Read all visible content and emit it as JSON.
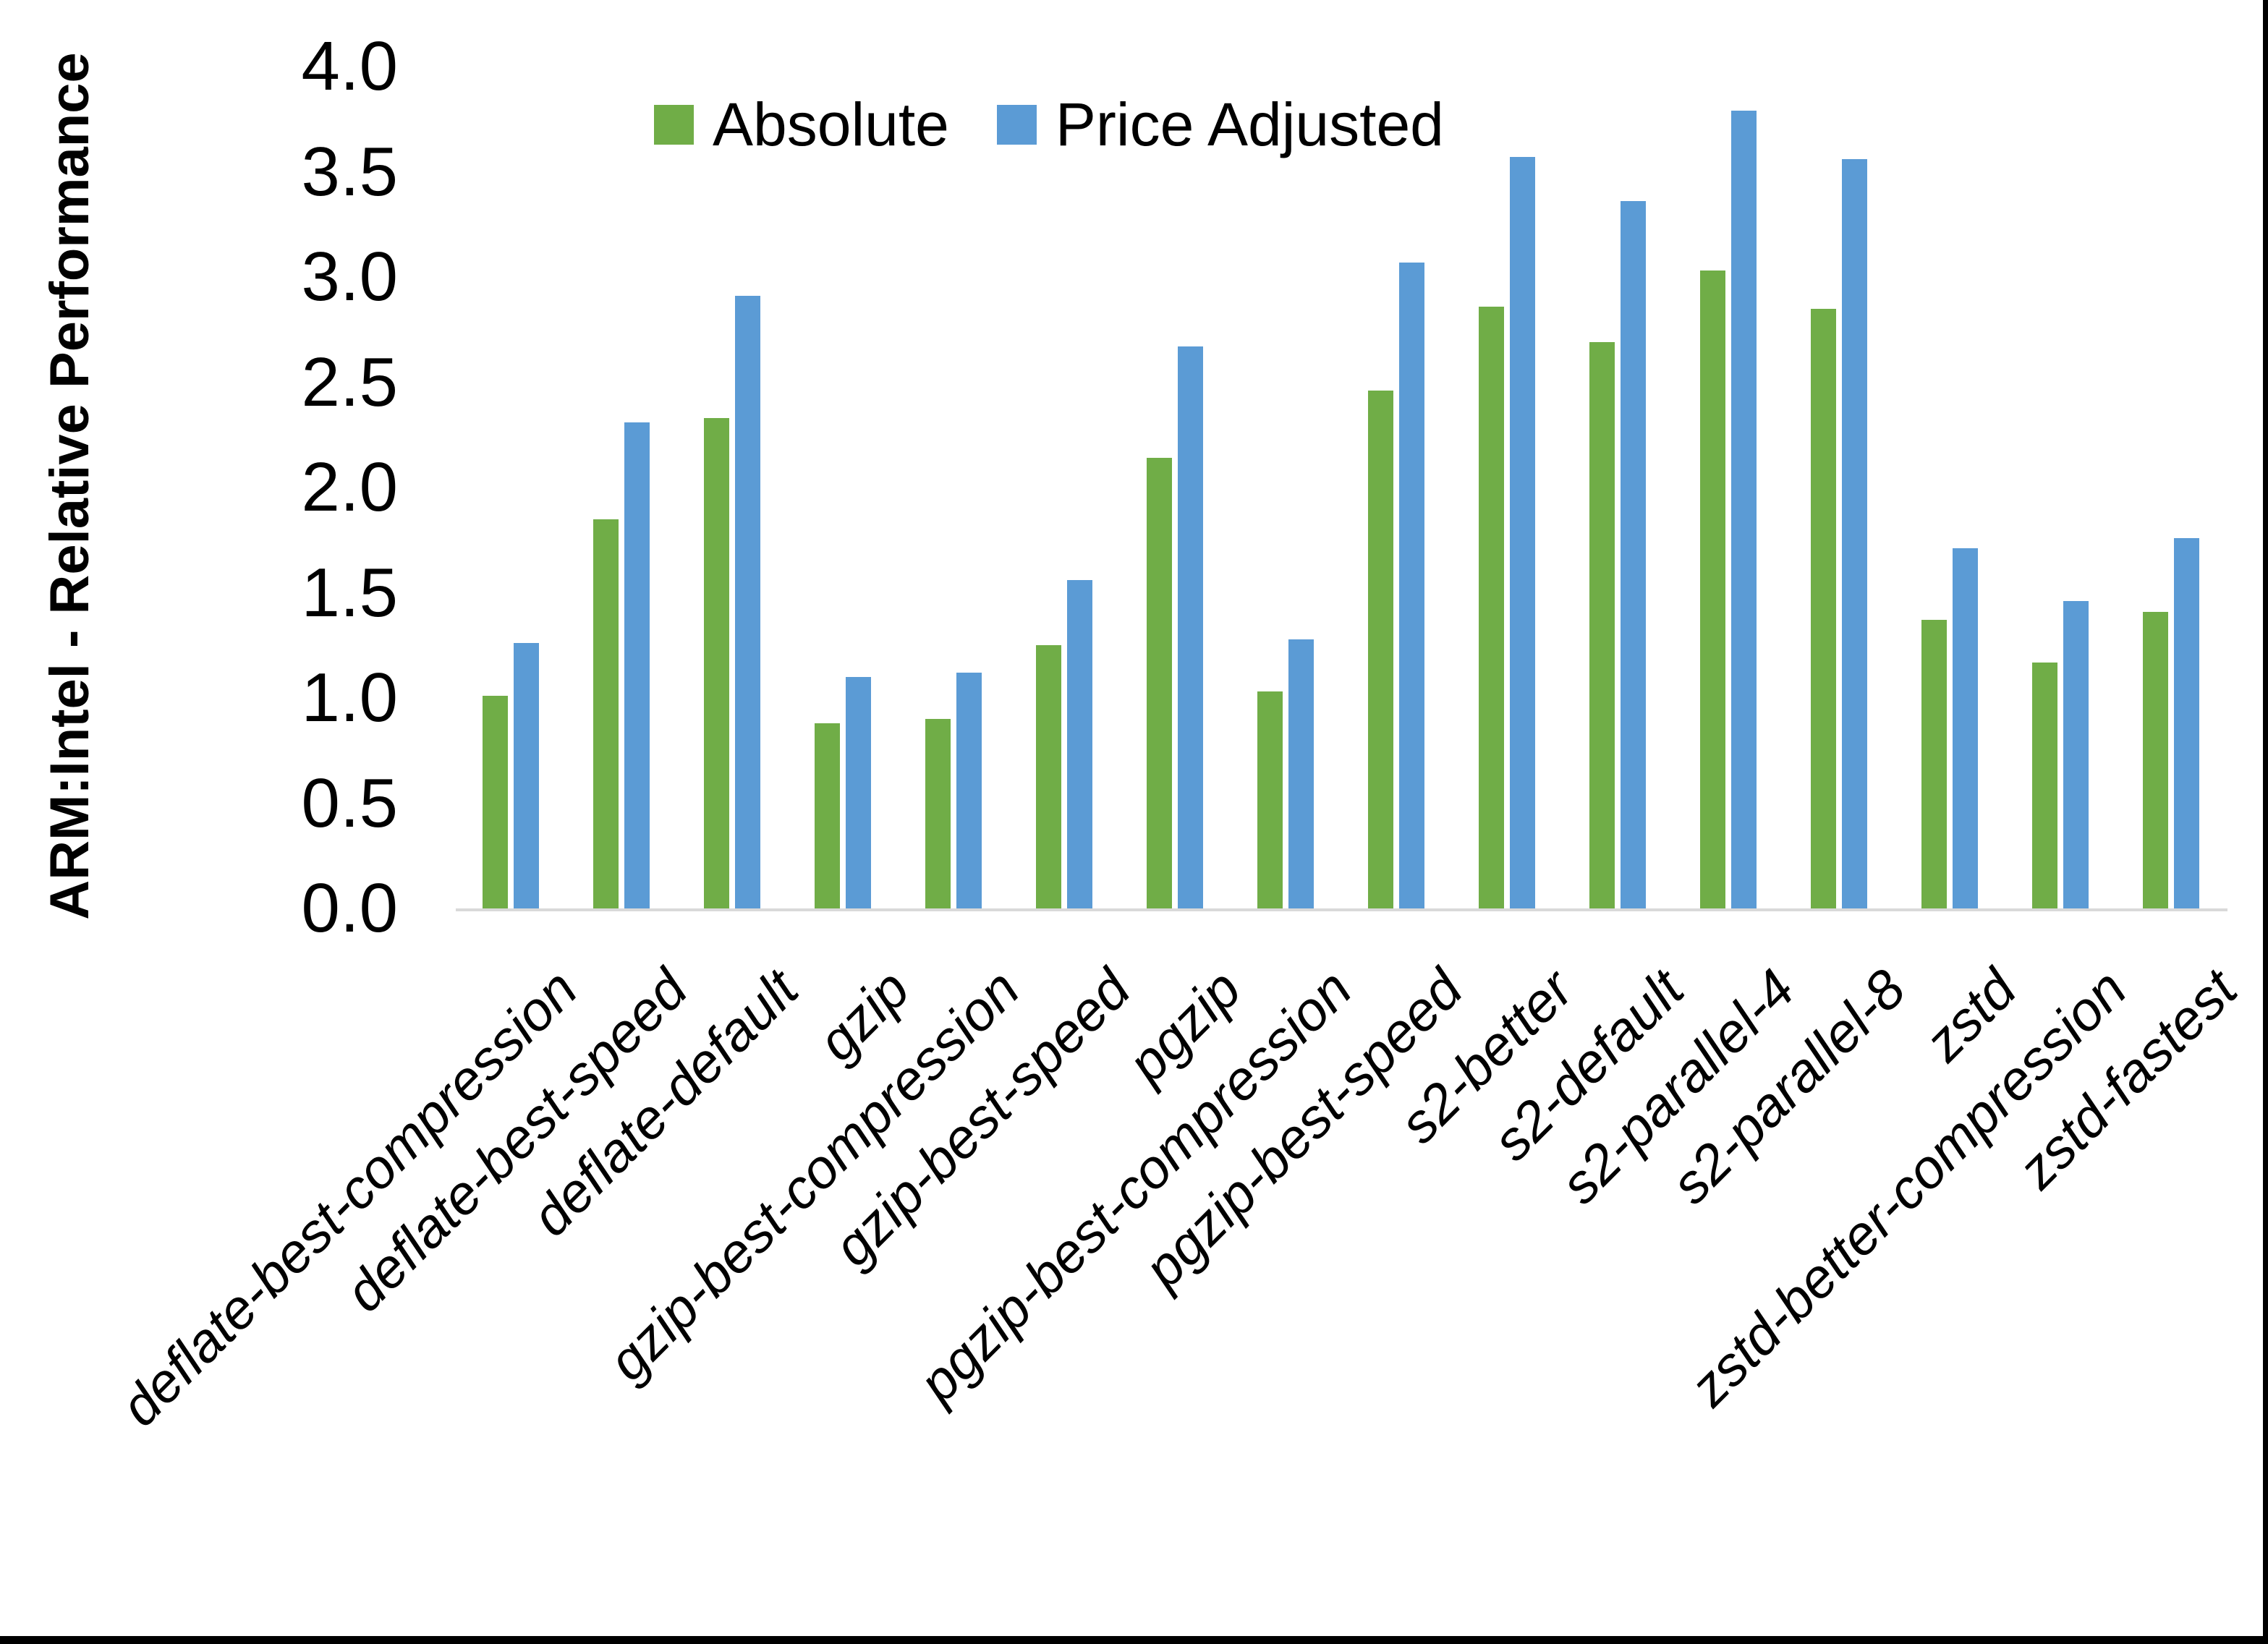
{
  "chart_data": {
    "type": "bar",
    "title": "",
    "ylabel": "ARM:Intel - Relative Performance",
    "xlabel": "",
    "ylim": [
      0.0,
      4.0
    ],
    "y_tick_step": 0.5,
    "y_ticks": [
      "0.0",
      "0.5",
      "1.0",
      "1.5",
      "2.0",
      "2.5",
      "3.0",
      "3.5",
      "4.0"
    ],
    "grid": "off",
    "legend_position": "top-center",
    "categories": [
      "deflate-best-compression",
      "deflate-best-speed",
      "deflate-default",
      "gzip",
      "gzip-best-compression",
      "gzip-best-speed",
      "pgzip",
      "pgzip-best-compression",
      "pgzip-best-speed",
      "s2-better",
      "s2-default",
      "s2-parallel-4",
      "s2-parallel-8",
      "zstd",
      "zstd-better-compression",
      "zstd-fastest"
    ],
    "series": [
      {
        "name": "Absolute",
        "color": "#70AD47",
        "values": [
          1.01,
          1.85,
          2.33,
          0.88,
          0.9,
          1.25,
          2.14,
          1.03,
          2.46,
          2.86,
          2.69,
          3.03,
          2.85,
          1.37,
          1.17,
          1.41
        ]
      },
      {
        "name": "Price Adjusted",
        "color": "#5B9BD5",
        "values": [
          1.26,
          2.31,
          2.91,
          1.1,
          1.12,
          1.56,
          2.67,
          1.28,
          3.07,
          3.57,
          3.36,
          3.79,
          3.56,
          1.71,
          1.46,
          1.76
        ]
      }
    ],
    "axis_line_color": "#D9D9D9",
    "text_color": "#000000",
    "background_color": "#FFFFFF",
    "border_color": "#000000"
  }
}
